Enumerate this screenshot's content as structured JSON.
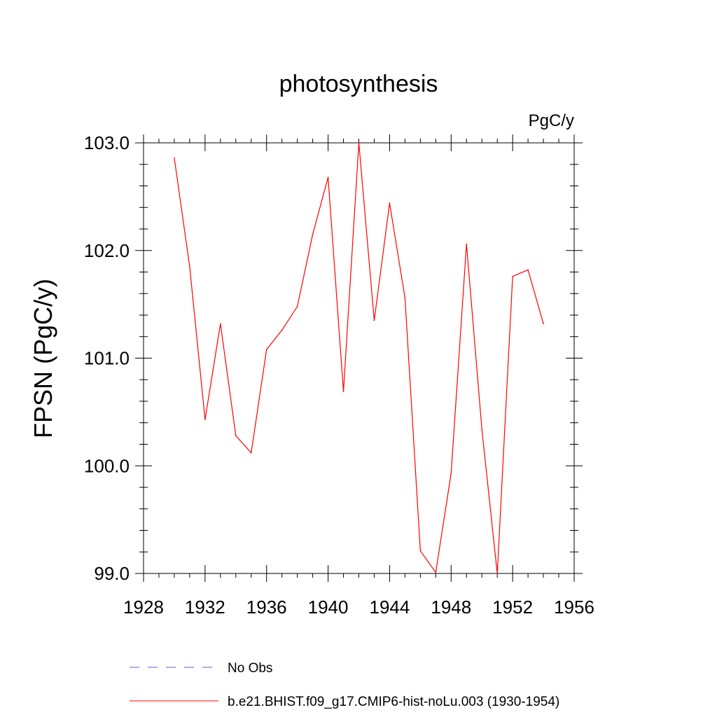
{
  "chart_data": {
    "type": "line",
    "title": "photosynthesis",
    "units_label": "PgC/y",
    "ylabel": "FPSN  (PgC/y)",
    "xlabel": "",
    "xlim": [
      1928,
      1956
    ],
    "ylim": [
      99.0,
      103.0
    ],
    "x_ticks": [
      1928,
      1932,
      1936,
      1940,
      1944,
      1948,
      1952,
      1956
    ],
    "x_tick_labels": [
      "1928",
      "1932",
      "1936",
      "1940",
      "1944",
      "1948",
      "1952",
      "1956"
    ],
    "y_ticks": [
      99.0,
      100.0,
      101.0,
      102.0,
      103.0
    ],
    "y_tick_labels": [
      "99.0",
      "100.0",
      "101.0",
      "102.0",
      "103.0"
    ],
    "grid": false,
    "legend_position": "bottom",
    "series": [
      {
        "name": "b.e21.BHIST.f09_g17.CMIP6-hist-noLu.003 (1930-1954)",
        "color": "#ff0000",
        "style": "solid",
        "x": [
          1930,
          1931,
          1932,
          1933,
          1934,
          1935,
          1936,
          1937,
          1938,
          1939,
          1940,
          1941,
          1942,
          1943,
          1944,
          1945,
          1946,
          1947,
          1948,
          1949,
          1950,
          1951,
          1952,
          1953,
          1954
        ],
        "y": [
          102.86,
          101.85,
          100.43,
          101.32,
          100.28,
          100.12,
          101.08,
          101.26,
          101.48,
          102.15,
          102.68,
          100.69,
          103.0,
          101.35,
          102.44,
          101.56,
          99.21,
          99.01,
          99.93,
          102.06,
          100.34,
          99.0,
          101.76,
          101.82,
          101.32
        ]
      }
    ],
    "legend": [
      {
        "label": "No Obs",
        "color": "#6a5acd",
        "style": "dashed"
      },
      {
        "label": "b.e21.BHIST.f09_g17.CMIP6-hist-noLu.003 (1930-1954)",
        "color": "#ff0000",
        "style": "solid"
      }
    ]
  }
}
